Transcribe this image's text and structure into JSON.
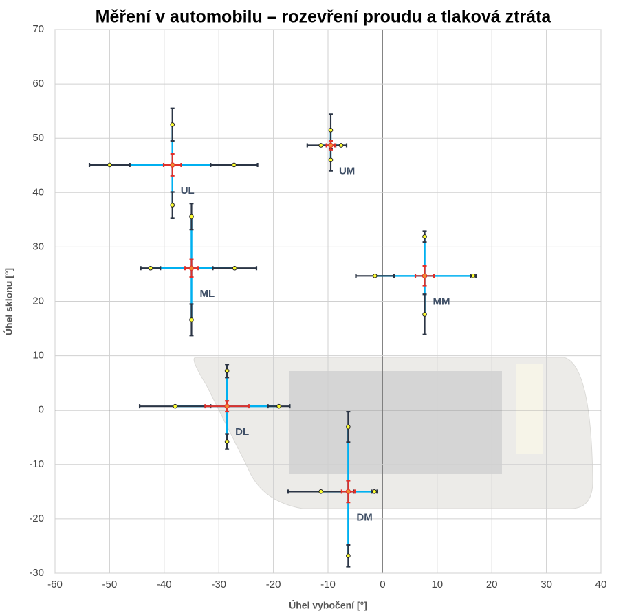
{
  "chart_data": {
    "type": "cross-scatter",
    "title": "Měření v automobilu – rozevření proudu a tlaková ztráta",
    "x_label": "Úhel vybočení [°]",
    "y_label": "Úhel sklonu [°]",
    "xlim": [
      -60,
      40
    ],
    "ylim": [
      -30,
      70
    ],
    "xticks": [
      -60,
      -50,
      -40,
      -30,
      -20,
      -10,
      0,
      10,
      20,
      30,
      40
    ],
    "yticks": [
      -30,
      -20,
      -10,
      0,
      10,
      20,
      30,
      40,
      50,
      60,
      70
    ],
    "grid": true,
    "line_color": "#00b0f0",
    "error_color": "#2b3545",
    "center_color": "#e0302a",
    "point_color": "#ffff33",
    "groups": [
      {
        "name": "UL",
        "center": {
          "x": -38.5,
          "y": 45.1,
          "xerr": 1.6,
          "yerr": 2
        },
        "left": {
          "x": -50,
          "err": 3.7
        },
        "right": {
          "x": -27.2,
          "err": 4.3
        },
        "top": {
          "y": 52.5,
          "err": 3
        },
        "bottom": {
          "y": 37.7,
          "err": 2.4
        }
      },
      {
        "name": "UM",
        "center": {
          "x": -9.5,
          "y": 48.7,
          "xerr": 0.8,
          "yerr": 0.8
        },
        "left": {
          "x": -11.3,
          "err": 2.5
        },
        "right": {
          "x": -7.6,
          "err": 1
        },
        "top": {
          "y": 51.5,
          "err": 2.9
        },
        "bottom": {
          "y": 46,
          "err": 2
        }
      },
      {
        "name": "MM",
        "center": {
          "x": 7.7,
          "y": 24.7,
          "xerr": 1.7,
          "yerr": 1.8
        },
        "left": {
          "x": -1.4,
          "err": 3.5
        },
        "right": {
          "x": 16.6,
          "err": 0.5
        },
        "top": {
          "y": 31.9,
          "err": 1
        },
        "bottom": {
          "y": 17.6,
          "err": 3.7
        }
      },
      {
        "name": "ML",
        "center": {
          "x": -35,
          "y": 26.1,
          "xerr": 1.2,
          "yerr": 1.6
        },
        "left": {
          "x": -42.5,
          "err": 1.8
        },
        "right": {
          "x": -27.1,
          "err": 4
        },
        "top": {
          "y": 35.6,
          "err": 2.4
        },
        "bottom": {
          "y": 16.6,
          "err": 2.9
        }
      },
      {
        "name": "DL",
        "center": {
          "x": -28.5,
          "y": 0.7,
          "xerr": 4,
          "yerr": 1
        },
        "left": {
          "x": -38,
          "err": 6.5
        },
        "right": {
          "x": -19,
          "err": 2
        },
        "top": {
          "y": 7.2,
          "err": 1.2
        },
        "bottom": {
          "y": -5.8,
          "err": 1.4
        }
      },
      {
        "name": "DM",
        "center": {
          "x": -6.3,
          "y": -15,
          "xerr": 1.2,
          "yerr": 2
        },
        "left": {
          "x": -11.3,
          "err": 6
        },
        "right": {
          "x": -1.5,
          "err": 0.5
        },
        "top": {
          "y": -3.1,
          "err": 2.8
        },
        "bottom": {
          "y": -26.8,
          "err": 2
        }
      }
    ]
  }
}
